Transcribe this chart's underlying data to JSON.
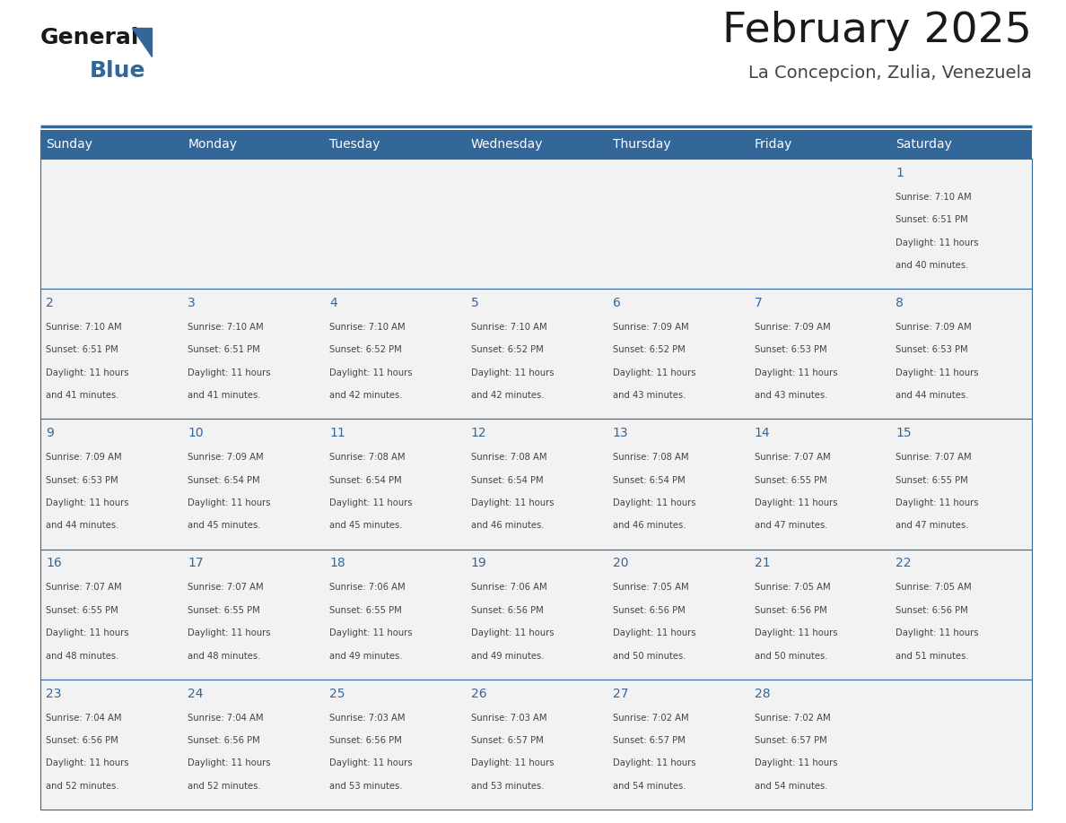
{
  "title": "February 2025",
  "subtitle": "La Concepcion, Zulia, Venezuela",
  "header_bg_color": "#336699",
  "header_text_color": "#FFFFFF",
  "cell_bg_color": "#F2F2F2",
  "day_number_color": "#336699",
  "cell_text_color": "#444444",
  "title_color": "#1a1a1a",
  "subtitle_color": "#444444",
  "line_color": "#336699",
  "bg_color": "#FFFFFF",
  "days_of_week": [
    "Sunday",
    "Monday",
    "Tuesday",
    "Wednesday",
    "Thursday",
    "Friday",
    "Saturday"
  ],
  "calendar": [
    [
      null,
      null,
      null,
      null,
      null,
      null,
      1
    ],
    [
      2,
      3,
      4,
      5,
      6,
      7,
      8
    ],
    [
      9,
      10,
      11,
      12,
      13,
      14,
      15
    ],
    [
      16,
      17,
      18,
      19,
      20,
      21,
      22
    ],
    [
      23,
      24,
      25,
      26,
      27,
      28,
      null
    ]
  ],
  "cell_data": {
    "1": {
      "sunrise": "7:10 AM",
      "sunset": "6:51 PM",
      "daylight_hours": 11,
      "daylight_minutes": 40
    },
    "2": {
      "sunrise": "7:10 AM",
      "sunset": "6:51 PM",
      "daylight_hours": 11,
      "daylight_minutes": 41
    },
    "3": {
      "sunrise": "7:10 AM",
      "sunset": "6:51 PM",
      "daylight_hours": 11,
      "daylight_minutes": 41
    },
    "4": {
      "sunrise": "7:10 AM",
      "sunset": "6:52 PM",
      "daylight_hours": 11,
      "daylight_minutes": 42
    },
    "5": {
      "sunrise": "7:10 AM",
      "sunset": "6:52 PM",
      "daylight_hours": 11,
      "daylight_minutes": 42
    },
    "6": {
      "sunrise": "7:09 AM",
      "sunset": "6:52 PM",
      "daylight_hours": 11,
      "daylight_minutes": 43
    },
    "7": {
      "sunrise": "7:09 AM",
      "sunset": "6:53 PM",
      "daylight_hours": 11,
      "daylight_minutes": 43
    },
    "8": {
      "sunrise": "7:09 AM",
      "sunset": "6:53 PM",
      "daylight_hours": 11,
      "daylight_minutes": 44
    },
    "9": {
      "sunrise": "7:09 AM",
      "sunset": "6:53 PM",
      "daylight_hours": 11,
      "daylight_minutes": 44
    },
    "10": {
      "sunrise": "7:09 AM",
      "sunset": "6:54 PM",
      "daylight_hours": 11,
      "daylight_minutes": 45
    },
    "11": {
      "sunrise": "7:08 AM",
      "sunset": "6:54 PM",
      "daylight_hours": 11,
      "daylight_minutes": 45
    },
    "12": {
      "sunrise": "7:08 AM",
      "sunset": "6:54 PM",
      "daylight_hours": 11,
      "daylight_minutes": 46
    },
    "13": {
      "sunrise": "7:08 AM",
      "sunset": "6:54 PM",
      "daylight_hours": 11,
      "daylight_minutes": 46
    },
    "14": {
      "sunrise": "7:07 AM",
      "sunset": "6:55 PM",
      "daylight_hours": 11,
      "daylight_minutes": 47
    },
    "15": {
      "sunrise": "7:07 AM",
      "sunset": "6:55 PM",
      "daylight_hours": 11,
      "daylight_minutes": 47
    },
    "16": {
      "sunrise": "7:07 AM",
      "sunset": "6:55 PM",
      "daylight_hours": 11,
      "daylight_minutes": 48
    },
    "17": {
      "sunrise": "7:07 AM",
      "sunset": "6:55 PM",
      "daylight_hours": 11,
      "daylight_minutes": 48
    },
    "18": {
      "sunrise": "7:06 AM",
      "sunset": "6:55 PM",
      "daylight_hours": 11,
      "daylight_minutes": 49
    },
    "19": {
      "sunrise": "7:06 AM",
      "sunset": "6:56 PM",
      "daylight_hours": 11,
      "daylight_minutes": 49
    },
    "20": {
      "sunrise": "7:05 AM",
      "sunset": "6:56 PM",
      "daylight_hours": 11,
      "daylight_minutes": 50
    },
    "21": {
      "sunrise": "7:05 AM",
      "sunset": "6:56 PM",
      "daylight_hours": 11,
      "daylight_minutes": 50
    },
    "22": {
      "sunrise": "7:05 AM",
      "sunset": "6:56 PM",
      "daylight_hours": 11,
      "daylight_minutes": 51
    },
    "23": {
      "sunrise": "7:04 AM",
      "sunset": "6:56 PM",
      "daylight_hours": 11,
      "daylight_minutes": 52
    },
    "24": {
      "sunrise": "7:04 AM",
      "sunset": "6:56 PM",
      "daylight_hours": 11,
      "daylight_minutes": 52
    },
    "25": {
      "sunrise": "7:03 AM",
      "sunset": "6:56 PM",
      "daylight_hours": 11,
      "daylight_minutes": 53
    },
    "26": {
      "sunrise": "7:03 AM",
      "sunset": "6:57 PM",
      "daylight_hours": 11,
      "daylight_minutes": 53
    },
    "27": {
      "sunrise": "7:02 AM",
      "sunset": "6:57 PM",
      "daylight_hours": 11,
      "daylight_minutes": 54
    },
    "28": {
      "sunrise": "7:02 AM",
      "sunset": "6:57 PM",
      "daylight_hours": 11,
      "daylight_minutes": 54
    }
  }
}
